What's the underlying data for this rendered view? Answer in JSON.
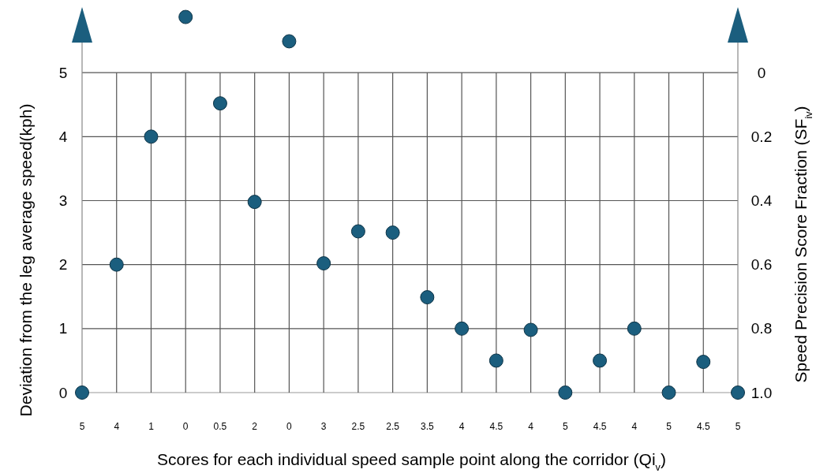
{
  "chart_data": {
    "type": "scatter",
    "xlabel": "Scores for each individual speed sample point along the corridor (Qi$_{v}$)",
    "ylabel": "Deviation from the leg average speed(kph)",
    "y2label": "Speed Precision Score Fraction (SF$_{iv}$)",
    "categories": [
      "5",
      "4",
      "1",
      "0",
      "0.5",
      "2",
      "0",
      "3",
      "2.5",
      "2.5",
      "3.5",
      "4",
      "4.5",
      "4",
      "5",
      "4.5",
      "4",
      "5",
      "4.5",
      "5"
    ],
    "series": [
      {
        "color": "#1b5e7e",
        "values": [
          0,
          2,
          4,
          5.87,
          4.52,
          2.98,
          5.49,
          2.02,
          2.52,
          2.5,
          1.49,
          1,
          0.5,
          0.98,
          0,
          0.5,
          1,
          0,
          0.48,
          0
        ]
      }
    ],
    "ylim": [
      0,
      6
    ],
    "yticks": [
      0,
      1,
      2,
      3,
      4,
      5
    ],
    "y2lim": [
      1,
      -0.2
    ],
    "y2ticks": [
      0,
      0.2,
      0.4,
      0.6,
      0.8,
      {
        "value": 1,
        "label": "1.0"
      }
    ],
    "grid": true,
    "marker": "circle"
  }
}
